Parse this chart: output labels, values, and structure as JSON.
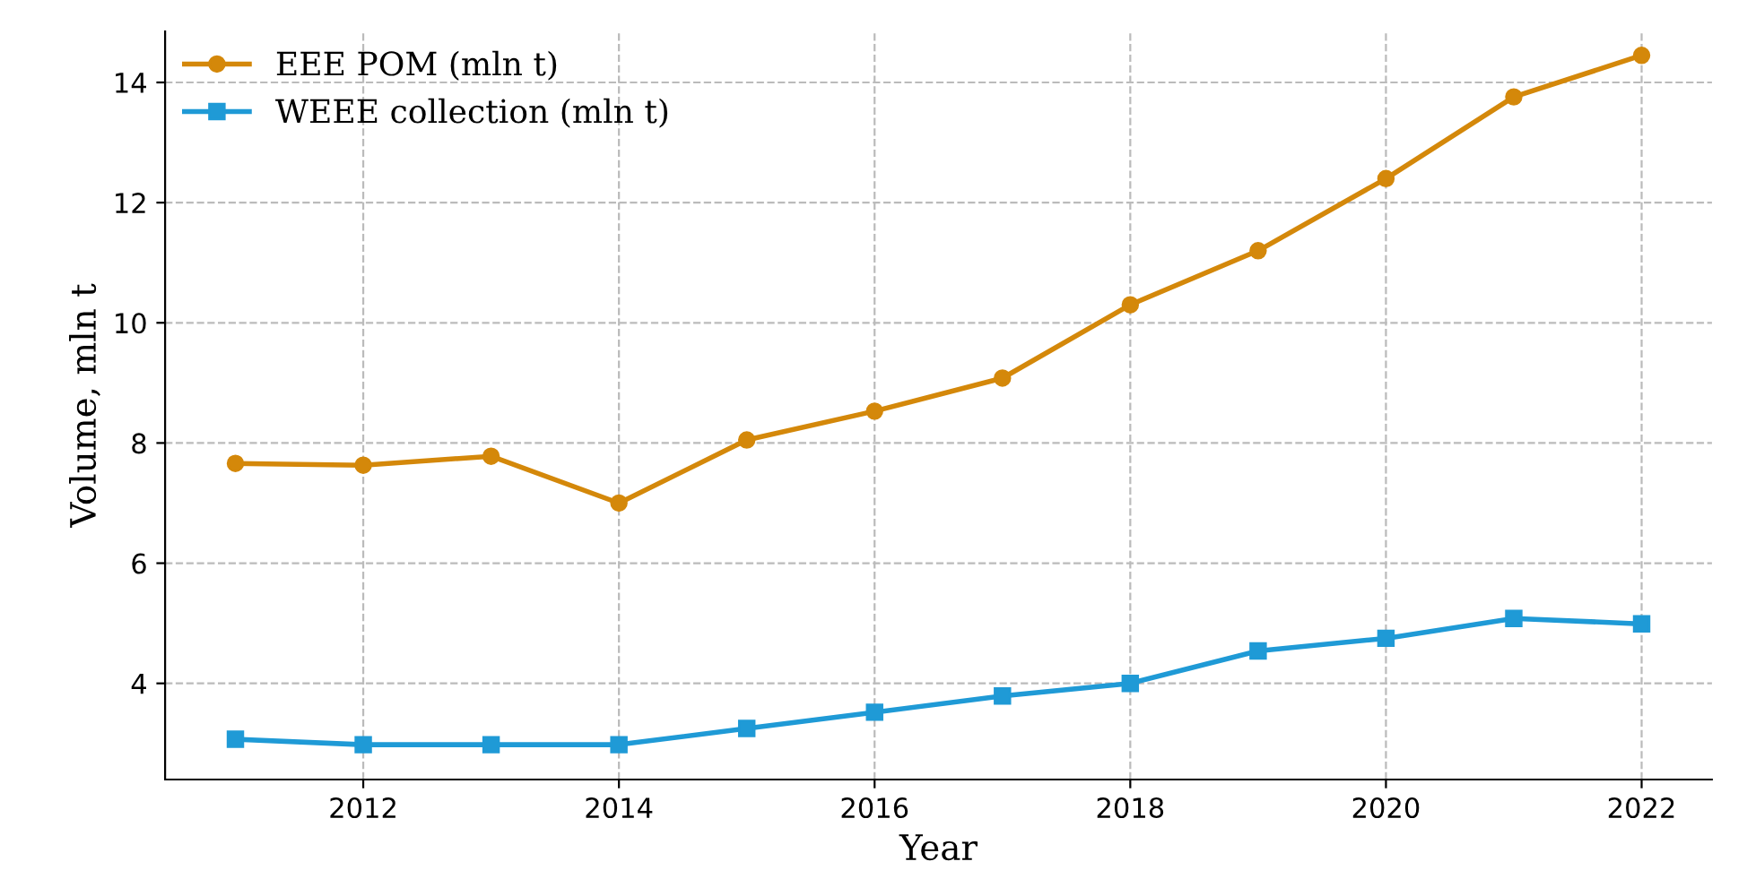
{
  "chart_data": {
    "type": "line",
    "xlabel": "Year",
    "ylabel": "Volume, mln t",
    "x": [
      2011,
      2012,
      2013,
      2014,
      2015,
      2016,
      2017,
      2018,
      2019,
      2020,
      2021,
      2022
    ],
    "series": [
      {
        "name": "EEE POM (mln t)",
        "color": "#d4880a",
        "marker": "circle",
        "values": [
          7.66,
          7.63,
          7.78,
          7.0,
          8.05,
          8.53,
          9.08,
          10.3,
          11.2,
          12.4,
          13.76,
          14.45
        ]
      },
      {
        "name": "WEEE collection (mln t)",
        "color": "#1f9ad6",
        "marker": "square",
        "values": [
          3.07,
          2.98,
          2.98,
          2.98,
          3.25,
          3.52,
          3.79,
          4.0,
          4.54,
          4.75,
          5.08,
          4.99
        ]
      }
    ],
    "xlim": [
      2010.45,
      2022.55
    ],
    "ylim": [
      2.4,
      14.85
    ],
    "xticks": [
      2012,
      2014,
      2016,
      2018,
      2020,
      2022
    ],
    "yticks": [
      4,
      6,
      8,
      10,
      12,
      14
    ],
    "grid": true,
    "legend": "top left",
    "line_style": "solid"
  }
}
